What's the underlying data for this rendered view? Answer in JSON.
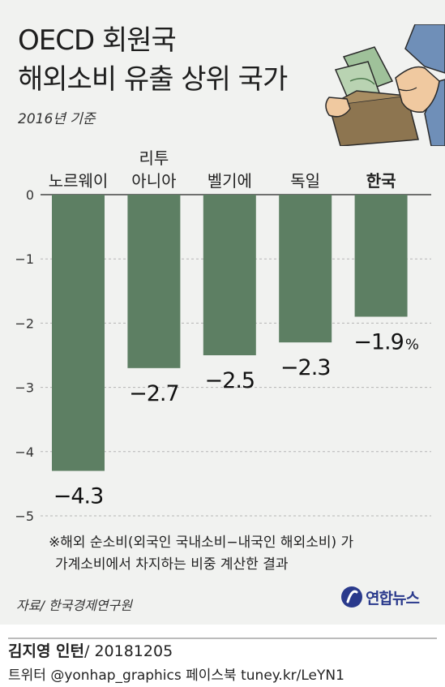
{
  "title_line1": "OECD 회원국",
  "title_line2": "해외소비 유출 상위 국가",
  "subtitle": "2016년 기준",
  "note_line1": "※해외 순소비(외국인 국내소비−내국인 해외소비) 가",
  "note_line2": "가계소비에서 차지하는 비중 계산한 결과",
  "source": "자료/ 한국경제연구원",
  "logo_text": "연합뉴스",
  "author": "김지영 인턴",
  "date": " / 20181205",
  "social": "트위터 @yonhap_graphics  페이스북 tuney.kr/LeYN1",
  "colors": {
    "bar": "#5d7f63",
    "panel": "#f1f2f0",
    "grid": "#b5b5b5"
  },
  "chart_data": {
    "type": "bar",
    "categories": [
      [
        "노르웨이"
      ],
      [
        "리투",
        "아니아"
      ],
      [
        "벨기에"
      ],
      [
        "독일"
      ],
      [
        "한국"
      ]
    ],
    "highlight_category": "한국",
    "values": [
      -4.3,
      -2.7,
      -2.5,
      -2.3,
      -1.9
    ],
    "value_labels": [
      "−4.3",
      "−2.7",
      "−2.5",
      "−2.3",
      "−1.9"
    ],
    "last_label_suffix": "%",
    "y_ticks": [
      0,
      -1,
      -2,
      -3,
      -4,
      -5
    ],
    "y_tick_labels": [
      "0",
      "−1",
      "−2",
      "−3",
      "−4",
      "−5"
    ],
    "ylim": [
      -5,
      0
    ],
    "grid": true
  }
}
